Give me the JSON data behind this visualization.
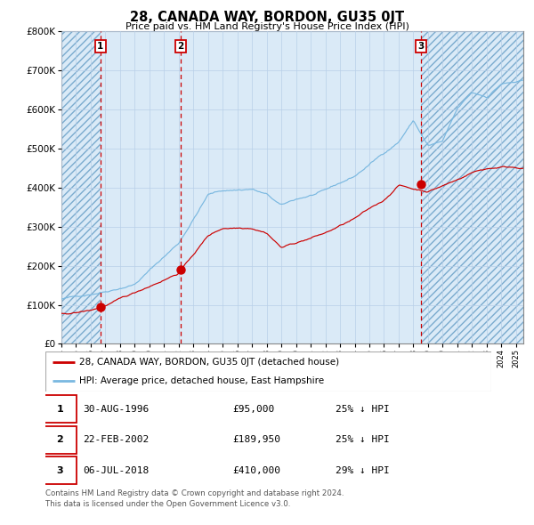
{
  "title": "28, CANADA WAY, BORDON, GU35 0JT",
  "subtitle": "Price paid vs. HM Land Registry's House Price Index (HPI)",
  "sale_label": "28, CANADA WAY, BORDON, GU35 0JT (detached house)",
  "hpi_label": "HPI: Average price, detached house, East Hampshire",
  "transactions": [
    {
      "num": 1,
      "date": "30-AUG-1996",
      "price": 95000,
      "pct": "25%",
      "dir": "↓",
      "x_year": 1996.66
    },
    {
      "num": 2,
      "date": "22-FEB-2002",
      "price": 189950,
      "pct": "25%",
      "dir": "↓",
      "x_year": 2002.14
    },
    {
      "num": 3,
      "date": "06-JUL-2018",
      "price": 410000,
      "pct": "29%",
      "dir": "↓",
      "x_year": 2018.51
    }
  ],
  "footer1": "Contains HM Land Registry data © Crown copyright and database right 2024.",
  "footer2": "This data is licensed under the Open Government Licence v3.0.",
  "hpi_color": "#7ab8e0",
  "price_color": "#cc0000",
  "bg_color": "#daeaf7",
  "grid_color": "#b8cfe8",
  "dashed_color": "#cc0000",
  "ylim": [
    0,
    800000
  ],
  "xlim_start": 1994.0,
  "xlim_end": 2025.5
}
